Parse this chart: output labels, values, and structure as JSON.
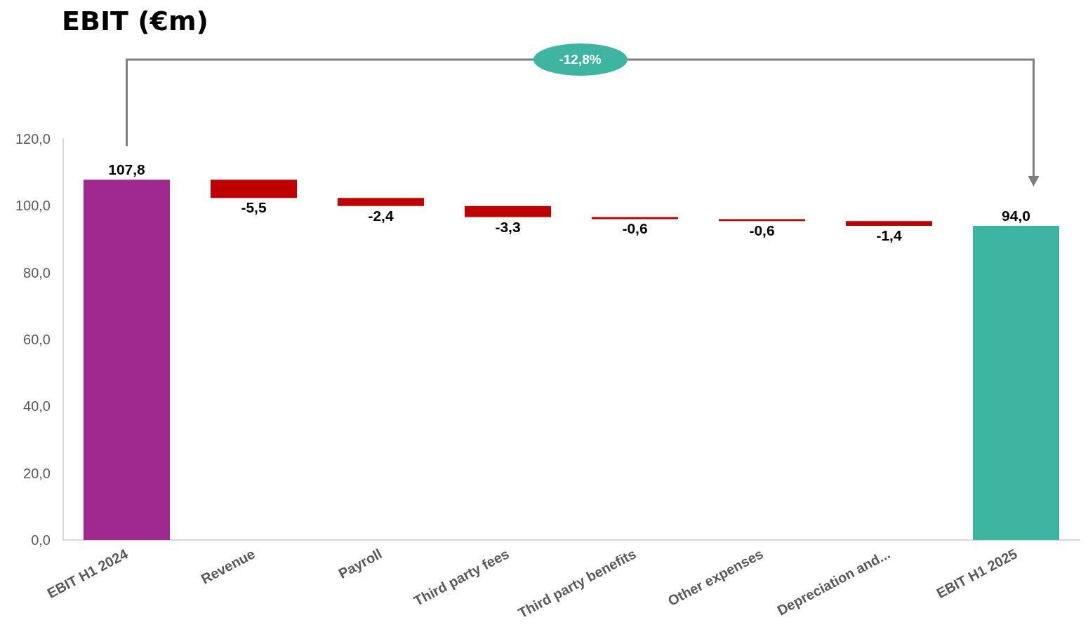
{
  "chart_data": {
    "type": "bar",
    "title": "EBIT (€m)",
    "categories": [
      "EBIT H1 2024",
      "Revenue",
      "Payroll",
      "Third party fees",
      "Third party benefits",
      "Other expenses",
      "Depreciation and...",
      "EBIT H1 2025"
    ],
    "values": [
      107.8,
      -5.5,
      -2.4,
      -3.3,
      -0.6,
      -0.6,
      -1.4,
      94.0
    ],
    "base": [
      0,
      107.8,
      102.3,
      99.9,
      96.6,
      96.0,
      95.4,
      0
    ],
    "colors": [
      "#a0298f",
      "#c00000",
      "#c00000",
      "#c00000",
      "#c00000",
      "#c00000",
      "#c00000",
      "#3db5a0"
    ],
    "value_labels": [
      "107,8",
      "-5,5",
      "-2,4",
      "-3,3",
      "-0,6",
      "-0,6",
      "-1,4",
      "94,0"
    ],
    "ylim": [
      0,
      120
    ],
    "yticks": [
      {
        "value": 0,
        "label": "0,0"
      },
      {
        "value": 20,
        "label": "20,0"
      },
      {
        "value": 40,
        "label": "40,0"
      },
      {
        "value": 60,
        "label": "60,0"
      },
      {
        "value": 80,
        "label": "80,0"
      },
      {
        "value": 100,
        "label": "100,0"
      },
      {
        "value": 120,
        "label": "120,0"
      }
    ],
    "grid": false,
    "annotations": [
      "-12,8%"
    ]
  }
}
